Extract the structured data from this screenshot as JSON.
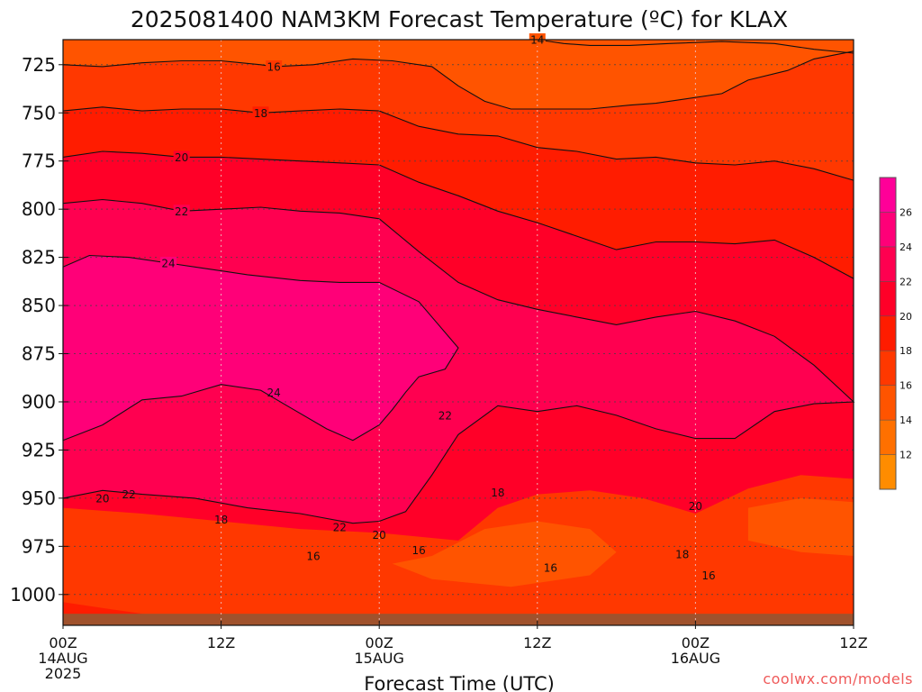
{
  "chart_data": {
    "type": "heatmap",
    "title": "2025081400 NAM3KM Forecast Temperature (ºC) for KLAX",
    "xlabel": "Forecast Time (UTC)",
    "ylabel": "",
    "x_ticks": [
      {
        "hours": 0,
        "line1": "00Z",
        "line2": "14AUG",
        "line3": "2025"
      },
      {
        "hours": 12,
        "line1": "12Z",
        "line2": "",
        "line3": ""
      },
      {
        "hours": 24,
        "line1": "00Z",
        "line2": "15AUG",
        "line3": ""
      },
      {
        "hours": 36,
        "line1": "12Z",
        "line2": "",
        "line3": ""
      },
      {
        "hours": 48,
        "line1": "00Z",
        "line2": "16AUG",
        "line3": ""
      },
      {
        "hours": 60,
        "line1": "12Z",
        "line2": "",
        "line3": ""
      }
    ],
    "xlim_hours": [
      0,
      60
    ],
    "y_ticks": [
      725,
      750,
      775,
      800,
      825,
      850,
      875,
      900,
      925,
      950,
      975,
      1000
    ],
    "ylim_hpa": [
      712,
      1016
    ],
    "grid": true,
    "colorbar": {
      "levels": [
        10,
        12,
        14,
        16,
        18,
        20,
        22,
        24,
        26,
        28
      ],
      "tick_labels": [
        "12",
        "14",
        "16",
        "18",
        "20",
        "22",
        "24",
        "26"
      ],
      "colors": [
        "#ff8c00",
        "#ff7000",
        "#ff5400",
        "#ff3800",
        "#ff1c00",
        "#ff0028",
        "#ff0050",
        "#ff0078",
        "#ff0098"
      ]
    },
    "ground_color": "#a0522d",
    "x_hours": [
      0,
      3,
      6,
      9,
      12,
      15,
      18,
      21,
      24,
      27,
      30,
      33,
      36,
      39,
      42,
      45,
      48,
      51,
      54,
      57,
      60
    ],
    "isotherms": [
      {
        "temp": 14,
        "label": "14",
        "label_hours": 36,
        "points": [
          [
            36,
            712
          ],
          [
            38,
            714
          ],
          [
            40,
            715
          ],
          [
            43,
            715
          ],
          [
            46,
            714
          ],
          [
            50,
            713
          ],
          [
            54,
            714
          ],
          [
            57,
            717
          ],
          [
            60,
            719
          ]
        ]
      },
      {
        "temp": 16,
        "label": "16",
        "label_hours": 16,
        "points": [
          [
            0,
            725
          ],
          [
            3,
            726
          ],
          [
            6,
            724
          ],
          [
            9,
            723
          ],
          [
            12,
            723
          ],
          [
            15,
            725
          ],
          [
            16,
            726
          ],
          [
            19,
            725
          ],
          [
            22,
            722
          ],
          [
            25,
            723
          ],
          [
            28,
            726
          ],
          [
            30,
            736
          ],
          [
            32,
            744
          ],
          [
            34,
            748
          ],
          [
            37,
            748
          ],
          [
            40,
            748
          ],
          [
            43,
            746
          ],
          [
            45,
            745
          ],
          [
            47,
            743
          ],
          [
            50,
            740
          ],
          [
            52,
            733
          ],
          [
            55,
            728
          ],
          [
            57,
            722
          ],
          [
            60,
            718
          ]
        ]
      },
      {
        "temp": 18,
        "label": "18",
        "label_hours": 15,
        "points": [
          [
            0,
            749
          ],
          [
            3,
            747
          ],
          [
            6,
            749
          ],
          [
            9,
            748
          ],
          [
            12,
            748
          ],
          [
            15,
            750
          ],
          [
            18,
            749
          ],
          [
            21,
            748
          ],
          [
            24,
            749
          ],
          [
            27,
            757
          ],
          [
            30,
            761
          ],
          [
            33,
            762
          ],
          [
            36,
            768
          ],
          [
            39,
            770
          ],
          [
            42,
            774
          ],
          [
            45,
            773
          ],
          [
            48,
            776
          ],
          [
            51,
            777
          ],
          [
            54,
            775
          ],
          [
            57,
            779
          ],
          [
            60,
            785
          ]
        ]
      },
      {
        "temp": 20,
        "label": "20",
        "label_hours": 10,
        "points": [
          [
            0,
            773
          ],
          [
            3,
            770
          ],
          [
            6,
            771
          ],
          [
            9,
            773
          ],
          [
            12,
            773
          ],
          [
            15,
            774
          ],
          [
            18,
            775
          ],
          [
            21,
            776
          ],
          [
            24,
            777
          ],
          [
            27,
            786
          ],
          [
            30,
            793
          ],
          [
            33,
            801
          ],
          [
            36,
            807
          ],
          [
            39,
            814
          ],
          [
            42,
            821
          ],
          [
            45,
            817
          ],
          [
            48,
            817
          ],
          [
            51,
            818
          ],
          [
            54,
            816
          ],
          [
            57,
            825
          ],
          [
            60,
            836
          ]
        ]
      },
      {
        "temp": 22,
        "label": "22",
        "label_hours": 9,
        "points": [
          [
            0,
            797
          ],
          [
            3,
            795
          ],
          [
            6,
            797
          ],
          [
            9,
            801
          ],
          [
            12,
            800
          ],
          [
            15,
            799
          ],
          [
            18,
            801
          ],
          [
            21,
            802
          ],
          [
            24,
            805
          ],
          [
            27,
            822
          ],
          [
            30,
            838
          ],
          [
            33,
            847
          ],
          [
            36,
            852
          ],
          [
            39,
            856
          ],
          [
            42,
            860
          ],
          [
            45,
            856
          ],
          [
            48,
            853
          ],
          [
            51,
            858
          ],
          [
            54,
            866
          ],
          [
            57,
            881
          ],
          [
            60,
            900
          ],
          [
            57,
            901
          ],
          [
            54,
            905
          ],
          [
            51,
            919
          ],
          [
            48,
            919
          ],
          [
            45,
            914
          ],
          [
            42,
            907
          ],
          [
            39,
            902
          ],
          [
            36,
            905
          ],
          [
            33,
            902
          ],
          [
            30,
            917
          ],
          [
            28,
            938
          ],
          [
            26,
            957
          ],
          [
            24,
            962
          ],
          [
            22,
            963
          ],
          [
            18,
            958
          ],
          [
            14,
            955
          ],
          [
            10,
            950
          ],
          [
            6,
            948
          ],
          [
            3,
            946
          ],
          [
            0,
            950
          ]
        ]
      },
      {
        "temp": 24,
        "label": "24",
        "label_hours": 8,
        "points": [
          [
            0,
            830
          ],
          [
            2,
            824
          ],
          [
            5,
            825
          ],
          [
            8,
            828
          ],
          [
            11,
            831
          ],
          [
            14,
            834
          ],
          [
            18,
            837
          ],
          [
            21,
            838
          ],
          [
            24,
            838
          ],
          [
            27,
            848
          ],
          [
            30,
            872
          ],
          [
            29,
            883
          ],
          [
            27,
            887
          ],
          [
            26,
            895
          ],
          [
            25,
            904
          ],
          [
            24,
            912
          ],
          [
            22,
            920
          ],
          [
            20,
            914
          ],
          [
            17,
            902
          ],
          [
            15,
            894
          ],
          [
            12,
            891
          ],
          [
            9,
            897
          ],
          [
            6,
            899
          ],
          [
            3,
            912
          ],
          [
            0,
            920
          ],
          [
            0,
            830
          ]
        ]
      }
    ],
    "contour_labels": [
      {
        "text": "22",
        "hours": 29,
        "hpa": 907
      },
      {
        "text": "24",
        "hours": 16,
        "hpa": 895
      },
      {
        "text": "22",
        "hours": 5,
        "hpa": 948
      },
      {
        "text": "20",
        "hours": 3,
        "hpa": 950
      },
      {
        "text": "18",
        "hours": 12,
        "hpa": 961
      },
      {
        "text": "22",
        "hours": 21,
        "hpa": 965
      },
      {
        "text": "20",
        "hours": 24,
        "hpa": 969
      },
      {
        "text": "16",
        "hours": 19,
        "hpa": 980
      },
      {
        "text": "16",
        "hours": 27,
        "hpa": 977
      },
      {
        "text": "18",
        "hours": 33,
        "hpa": 947
      },
      {
        "text": "16",
        "hours": 37,
        "hpa": 986
      },
      {
        "text": "20",
        "hours": 48,
        "hpa": 954
      },
      {
        "text": "18",
        "hours": 47,
        "hpa": 979
      },
      {
        "text": "16",
        "hours": 49,
        "hpa": 990
      }
    ]
  },
  "credit": "coolwx.com/models"
}
